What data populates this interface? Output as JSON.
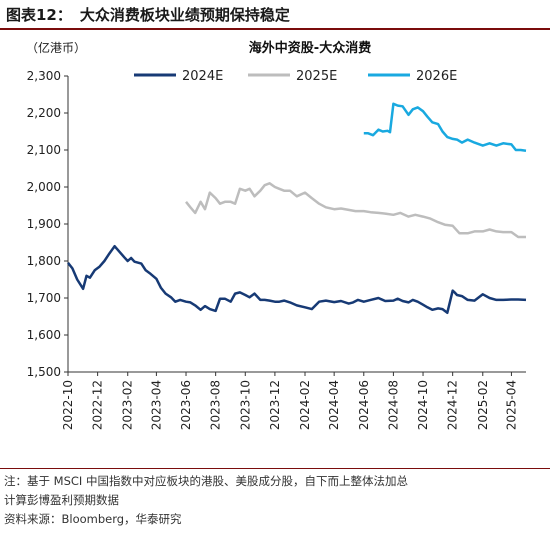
{
  "figure": {
    "label": "图表12：",
    "caption": "大众消费板块业绩预期保持稳定"
  },
  "notes": {
    "line1": "注：基于 MSCI 中国指数中对应板块的港股、美股成分股，自下而上整体法加总",
    "line2": "计算彭博盈利预期数据",
    "source": "资料来源：Bloomberg，华泰研究"
  },
  "chart_data": {
    "type": "line",
    "title": "海外中资股-大众消费",
    "ylabel": "（亿港币）",
    "xlabel": "",
    "ylim": [
      1500,
      2300
    ],
    "yticks": [
      "1,500",
      "1,600",
      "1,700",
      "1,800",
      "1,900",
      "2,000",
      "2,100",
      "2,200",
      "2,300"
    ],
    "xlim": [
      "2022-10",
      "2025-05"
    ],
    "xticks": [
      "2022-10",
      "2022-12",
      "2023-02",
      "2023-04",
      "2023-06",
      "2023-08",
      "2023-10",
      "2023-12",
      "2024-02",
      "2024-04",
      "2024-06",
      "2024-08",
      "2024-10",
      "2024-12",
      "2025-02",
      "2025-04"
    ],
    "grid": false,
    "legend_position": "top",
    "series": [
      {
        "name": "2024E",
        "color": "#173a75",
        "x": [
          "2022-10-01",
          "2022-10-10",
          "2022-10-20",
          "2022-11-01",
          "2022-11-08",
          "2022-11-15",
          "2022-11-25",
          "2022-12-05",
          "2022-12-15",
          "2022-12-25",
          "2023-01-05",
          "2023-01-15",
          "2023-01-25",
          "2023-02-01",
          "2023-02-08",
          "2023-02-15",
          "2023-03-01",
          "2023-03-10",
          "2023-03-20",
          "2023-04-01",
          "2023-04-10",
          "2023-04-20",
          "2023-05-01",
          "2023-05-10",
          "2023-05-20",
          "2023-06-01",
          "2023-06-10",
          "2023-06-20",
          "2023-07-01",
          "2023-07-10",
          "2023-07-20",
          "2023-08-01",
          "2023-08-10",
          "2023-08-20",
          "2023-09-01",
          "2023-09-10",
          "2023-09-20",
          "2023-10-01",
          "2023-10-10",
          "2023-10-20",
          "2023-11-01",
          "2023-11-10",
          "2023-11-20",
          "2023-12-01",
          "2023-12-10",
          "2023-12-20",
          "2024-01-01",
          "2024-01-15",
          "2024-02-01",
          "2024-02-15",
          "2024-03-01",
          "2024-03-15",
          "2024-04-01",
          "2024-04-15",
          "2024-05-01",
          "2024-05-10",
          "2024-05-20",
          "2024-06-01",
          "2024-06-15",
          "2024-07-01",
          "2024-07-15",
          "2024-08-01",
          "2024-08-10",
          "2024-08-20",
          "2024-09-01",
          "2024-09-10",
          "2024-09-20",
          "2024-10-01",
          "2024-10-10",
          "2024-10-20",
          "2024-11-01",
          "2024-11-10",
          "2024-11-20",
          "2024-12-01",
          "2024-12-05",
          "2024-12-10",
          "2024-12-20",
          "2025-01-01",
          "2025-01-15",
          "2025-02-01",
          "2025-02-15",
          "2025-03-01",
          "2025-03-15",
          "2025-04-01",
          "2025-04-15",
          "2025-05-01"
        ],
        "values": [
          1795,
          1780,
          1750,
          1725,
          1760,
          1755,
          1775,
          1785,
          1800,
          1820,
          1840,
          1825,
          1810,
          1800,
          1808,
          1798,
          1793,
          1775,
          1765,
          1752,
          1728,
          1712,
          1702,
          1690,
          1695,
          1690,
          1688,
          1680,
          1668,
          1678,
          1670,
          1665,
          1698,
          1698,
          1690,
          1712,
          1715,
          1708,
          1702,
          1712,
          1695,
          1695,
          1693,
          1690,
          1690,
          1693,
          1688,
          1680,
          1675,
          1670,
          1690,
          1693,
          1689,
          1692,
          1685,
          1688,
          1695,
          1690,
          1695,
          1700,
          1692,
          1693,
          1698,
          1692,
          1688,
          1695,
          1690,
          1682,
          1675,
          1668,
          1672,
          1670,
          1660,
          1720,
          1715,
          1708,
          1705,
          1695,
          1693,
          1710,
          1700,
          1695,
          1695,
          1696,
          1696,
          1695
        ]
      },
      {
        "name": "2025E",
        "color": "#bdbdbd",
        "x": [
          "2023-06-01",
          "2023-06-10",
          "2023-06-20",
          "2023-07-01",
          "2023-07-10",
          "2023-07-20",
          "2023-08-01",
          "2023-08-10",
          "2023-08-20",
          "2023-09-01",
          "2023-09-10",
          "2023-09-20",
          "2023-10-01",
          "2023-10-10",
          "2023-10-20",
          "2023-11-01",
          "2023-11-10",
          "2023-11-20",
          "2023-12-01",
          "2023-12-10",
          "2023-12-20",
          "2024-01-01",
          "2024-01-15",
          "2024-02-01",
          "2024-02-15",
          "2024-03-01",
          "2024-03-15",
          "2024-04-01",
          "2024-04-15",
          "2024-05-01",
          "2024-05-15",
          "2024-06-01",
          "2024-06-15",
          "2024-07-01",
          "2024-07-15",
          "2024-08-01",
          "2024-08-15",
          "2024-09-01",
          "2024-09-15",
          "2024-10-01",
          "2024-10-15",
          "2024-11-01",
          "2024-11-15",
          "2024-12-01",
          "2024-12-15",
          "2025-01-01",
          "2025-01-15",
          "2025-02-01",
          "2025-02-15",
          "2025-03-01",
          "2025-03-15",
          "2025-04-01",
          "2025-04-15",
          "2025-05-01"
        ],
        "values": [
          1960,
          1945,
          1930,
          1960,
          1940,
          1985,
          1970,
          1955,
          1960,
          1960,
          1955,
          1995,
          1990,
          1995,
          1975,
          1990,
          2005,
          2010,
          2000,
          1995,
          1990,
          1990,
          1975,
          1985,
          1970,
          1955,
          1945,
          1940,
          1942,
          1938,
          1935,
          1935,
          1932,
          1930,
          1928,
          1925,
          1930,
          1920,
          1925,
          1920,
          1915,
          1905,
          1898,
          1895,
          1875,
          1875,
          1880,
          1880,
          1885,
          1880,
          1878,
          1878,
          1865,
          1865
        ]
      },
      {
        "name": "2026E",
        "color": "#19a9e0",
        "x": [
          "2024-06-01",
          "2024-06-10",
          "2024-06-20",
          "2024-07-01",
          "2024-07-10",
          "2024-07-20",
          "2024-07-25",
          "2024-08-01",
          "2024-08-10",
          "2024-08-20",
          "2024-09-01",
          "2024-09-10",
          "2024-09-20",
          "2024-10-01",
          "2024-10-10",
          "2024-10-20",
          "2024-11-01",
          "2024-11-10",
          "2024-11-20",
          "2024-12-01",
          "2024-12-10",
          "2024-12-20",
          "2025-01-01",
          "2025-01-15",
          "2025-02-01",
          "2025-02-15",
          "2025-03-01",
          "2025-03-15",
          "2025-04-01",
          "2025-04-10",
          "2025-04-20",
          "2025-05-01"
        ],
        "values": [
          2145,
          2145,
          2140,
          2155,
          2150,
          2152,
          2148,
          2225,
          2220,
          2218,
          2195,
          2210,
          2215,
          2205,
          2190,
          2175,
          2170,
          2150,
          2135,
          2130,
          2128,
          2120,
          2128,
          2120,
          2112,
          2118,
          2112,
          2118,
          2115,
          2100,
          2100,
          2098
        ]
      }
    ]
  }
}
